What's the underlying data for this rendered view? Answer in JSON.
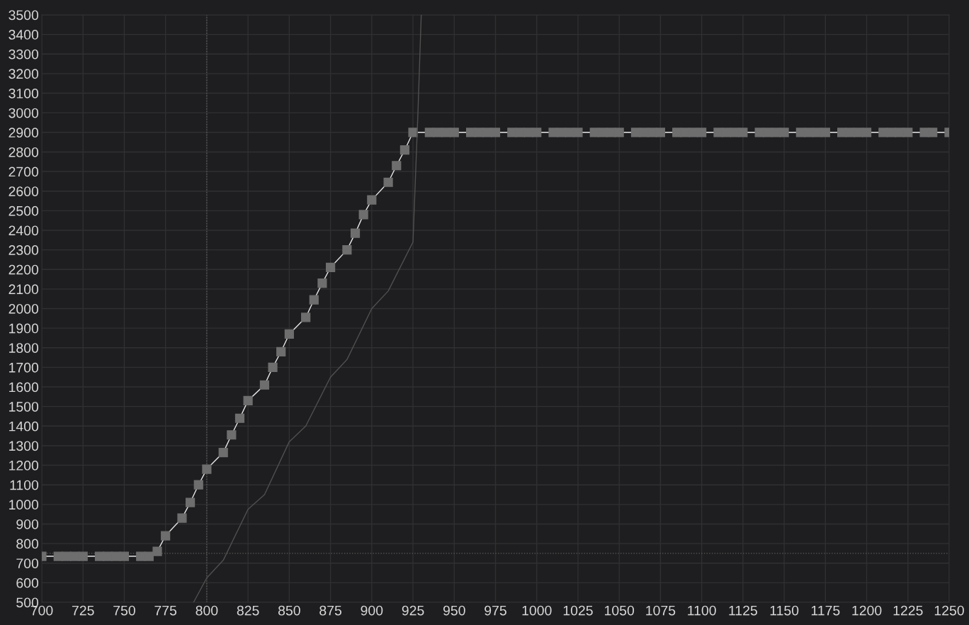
{
  "chart_data": {
    "type": "line",
    "xlim": [
      700,
      1250
    ],
    "xticks": [
      700,
      725,
      750,
      775,
      800,
      825,
      850,
      875,
      900,
      925,
      950,
      975,
      1000,
      1025,
      1050,
      1075,
      1100,
      1125,
      1150,
      1175,
      1200,
      1225,
      1250
    ],
    "ylim": [
      500,
      3500
    ],
    "yticks": [
      500,
      600,
      700,
      800,
      900,
      1000,
      1100,
      1200,
      1300,
      1400,
      1500,
      1600,
      1700,
      1800,
      1900,
      2000,
      2100,
      2200,
      2300,
      2400,
      2500,
      2600,
      2700,
      2800,
      2900,
      3000,
      3100,
      3200,
      3300,
      3400,
      3500
    ],
    "grid": true,
    "series": [
      {
        "color": "#6e6e6e",
        "marker": "square",
        "line_style": "solid",
        "x": [
          700,
          710,
          715,
          720,
          725,
          735,
          740,
          745,
          750,
          760,
          765,
          770,
          775,
          785,
          790,
          795,
          800,
          810,
          815,
          820,
          825,
          835,
          840,
          845,
          850,
          860,
          865,
          870,
          875,
          885,
          890,
          895,
          900,
          910,
          915,
          920,
          925,
          935,
          940,
          945,
          950,
          960,
          965,
          970,
          975,
          985,
          990,
          995,
          1000,
          1010,
          1015,
          1020,
          1025,
          1035,
          1040,
          1045,
          1050,
          1060,
          1065,
          1070,
          1075,
          1085,
          1090,
          1095,
          1100,
          1110,
          1115,
          1120,
          1125,
          1135,
          1140,
          1145,
          1150,
          1160,
          1165,
          1170,
          1175,
          1185,
          1190,
          1195,
          1200,
          1210,
          1215,
          1220,
          1225,
          1235,
          1240,
          1250
        ],
        "values": [
          735,
          735,
          735,
          735,
          735,
          735,
          735,
          735,
          735,
          735,
          735,
          760,
          840,
          930,
          1010,
          1100,
          1180,
          1265,
          1355,
          1440,
          1530,
          1610,
          1700,
          1780,
          1870,
          1955,
          2045,
          2130,
          2210,
          2300,
          2385,
          2480,
          2555,
          2645,
          2730,
          2810,
          2900,
          2900,
          2900,
          2900,
          2900,
          2900,
          2900,
          2900,
          2900,
          2900,
          2900,
          2900,
          2900,
          2900,
          2900,
          2900,
          2900,
          2900,
          2900,
          2900,
          2900,
          2900,
          2900,
          2900,
          2900,
          2900,
          2900,
          2900,
          2900,
          2900,
          2900,
          2900,
          2900,
          2900,
          2900,
          2900,
          2900,
          2900,
          2900,
          2900,
          2900,
          2900,
          2900,
          2900,
          2900,
          2900,
          2900,
          2900,
          2900,
          2900,
          2900,
          2900
        ]
      },
      {
        "color": "#505050",
        "marker": "none",
        "line_style": "solid",
        "x": [
          792,
          800,
          810,
          825,
          835,
          850,
          860,
          875,
          885,
          900,
          910,
          925,
          928,
          930
        ],
        "values": [
          500,
          625,
          715,
          975,
          1050,
          1320,
          1400,
          1650,
          1740,
          2000,
          2090,
          2340,
          3000,
          3500
        ]
      }
    ],
    "ref_lines": [
      {
        "axis": "x",
        "value": 800,
        "color": "#5a5a5a",
        "line_style": "dotted"
      },
      {
        "axis": "y",
        "value": 750,
        "color": "#5a5a5a",
        "line_style": "dotted"
      }
    ]
  }
}
